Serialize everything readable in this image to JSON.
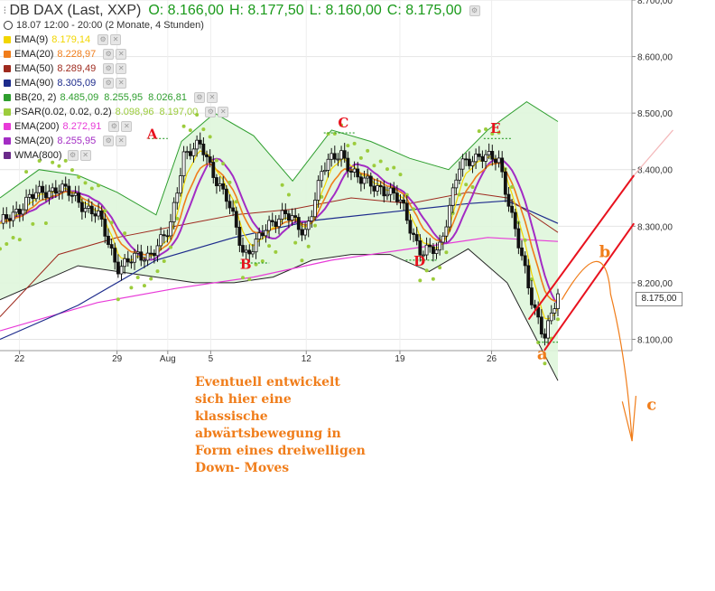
{
  "header": {
    "symbol": "DB DAX (Last, XXP)",
    "open": "O: 8.166,00",
    "high": "H: 8.177,50",
    "low": "L: 8.160,00",
    "close": "C: 8.175,00",
    "timeframe": "18.07 12:00 - 20:00 (2 Monate, 4 Stunden)"
  },
  "indicators": [
    {
      "name": "EMA(9)",
      "values": [
        "8.179,14"
      ],
      "color": "#f2d600"
    },
    {
      "name": "EMA(20)",
      "values": [
        "8.228,97"
      ],
      "color": "#f07d1a"
    },
    {
      "name": "EMA(50)",
      "values": [
        "8.289,49"
      ],
      "color": "#9e2a1e"
    },
    {
      "name": "EMA(90)",
      "values": [
        "8.305,09"
      ],
      "color": "#1d2b8c"
    },
    {
      "name": "BB(20, 2)",
      "values": [
        "8.485,09",
        "8.255,95",
        "8.026,81"
      ],
      "color": "#2e9e2e"
    },
    {
      "name": "PSAR(0.02, 0.02, 0.2)",
      "values": [
        "8.098,96",
        "8.197,00"
      ],
      "color": "#9ccc3c"
    },
    {
      "name": "EMA(200)",
      "values": [
        "8.272,91"
      ],
      "color": "#e83ad8"
    },
    {
      "name": "SMA(20)",
      "values": [
        "8.255,95"
      ],
      "color": "#a32cc4"
    },
    {
      "name": "WMA(800)",
      "values": [],
      "color": "#6a2a8a"
    }
  ],
  "annotation_note": [
    "Eventuell entwickelt",
    "sich hier eine",
    "klassische",
    "abwärtsbewegung in",
    "Form eines dreiwelligen",
    "Down- Moves"
  ],
  "chart_data": {
    "type": "candlestick",
    "title": "DB DAX (Last, XXP)",
    "x_ticks": [
      "22",
      "29",
      "Aug",
      "5",
      "12",
      "19",
      "26"
    ],
    "y_ticks": [
      "8.700,00",
      "8.600,00",
      "8.500,00",
      "8.400,00",
      "8.300,00",
      "8.200,00",
      "8.100,00"
    ],
    "ylim": [
      8080,
      8700
    ],
    "last_price": "8.175,00",
    "wave_labels": [
      {
        "label": "A",
        "price": 8455,
        "day": 7.8
      },
      {
        "label": "B",
        "price": 8225,
        "day": 12.6
      },
      {
        "label": "C",
        "price": 8475,
        "day": 17.6
      },
      {
        "label": "D",
        "price": 8230,
        "day": 21.5
      },
      {
        "label": "E",
        "price": 8465,
        "day": 25.4
      },
      {
        "label": "a",
        "price": 8065,
        "day": 27.8
      },
      {
        "label": "b",
        "price": 8245,
        "day": 31.0
      },
      {
        "label": "c",
        "price": 7975,
        "day": 33.4
      }
    ],
    "x_tick_days": [
      1,
      6,
      8.6,
      10.8,
      15.7,
      20.5,
      25.2
    ],
    "key_points": [
      {
        "day": 0,
        "price": 8300
      },
      {
        "day": 1.5,
        "price": 8350
      },
      {
        "day": 3,
        "price": 8370
      },
      {
        "day": 5,
        "price": 8320
      },
      {
        "day": 6,
        "price": 8230
      },
      {
        "day": 7.6,
        "price": 8250
      },
      {
        "day": 8.7,
        "price": 8290
      },
      {
        "day": 9.4,
        "price": 8430
      },
      {
        "day": 10.3,
        "price": 8440
      },
      {
        "day": 11.6,
        "price": 8350
      },
      {
        "day": 12.5,
        "price": 8250
      },
      {
        "day": 13.6,
        "price": 8290
      },
      {
        "day": 14.6,
        "price": 8330
      },
      {
        "day": 15.6,
        "price": 8280
      },
      {
        "day": 16.5,
        "price": 8400
      },
      {
        "day": 17.5,
        "price": 8430
      },
      {
        "day": 18.4,
        "price": 8380
      },
      {
        "day": 19.5,
        "price": 8370
      },
      {
        "day": 20.6,
        "price": 8340
      },
      {
        "day": 21.6,
        "price": 8250
      },
      {
        "day": 22.5,
        "price": 8260
      },
      {
        "day": 23.5,
        "price": 8400
      },
      {
        "day": 24.6,
        "price": 8430
      },
      {
        "day": 25.6,
        "price": 8410
      },
      {
        "day": 26.4,
        "price": 8300
      },
      {
        "day": 27.2,
        "price": 8170
      },
      {
        "day": 27.9,
        "price": 8110
      },
      {
        "day": 28.6,
        "price": 8175
      }
    ],
    "ema200_points": [
      {
        "day": 0,
        "price": 8115
      },
      {
        "day": 5,
        "price": 8165
      },
      {
        "day": 9,
        "price": 8190
      },
      {
        "day": 13,
        "price": 8210
      },
      {
        "day": 17,
        "price": 8240
      },
      {
        "day": 21,
        "price": 8260
      },
      {
        "day": 25,
        "price": 8280
      },
      {
        "day": 28.6,
        "price": 8273
      }
    ],
    "ema90_points": [
      {
        "day": 0,
        "price": 8100
      },
      {
        "day": 4,
        "price": 8160
      },
      {
        "day": 8,
        "price": 8240
      },
      {
        "day": 12,
        "price": 8280
      },
      {
        "day": 16,
        "price": 8310
      },
      {
        "day": 20,
        "price": 8325
      },
      {
        "day": 24,
        "price": 8340
      },
      {
        "day": 26,
        "price": 8345
      },
      {
        "day": 28.6,
        "price": 8305
      }
    ],
    "ema50_points": [
      {
        "day": 0,
        "price": 8140
      },
      {
        "day": 3,
        "price": 8250
      },
      {
        "day": 6,
        "price": 8280
      },
      {
        "day": 9,
        "price": 8300
      },
      {
        "day": 12,
        "price": 8320
      },
      {
        "day": 15,
        "price": 8330
      },
      {
        "day": 18,
        "price": 8350
      },
      {
        "day": 21,
        "price": 8340
      },
      {
        "day": 24,
        "price": 8360
      },
      {
        "day": 26,
        "price": 8350
      },
      {
        "day": 28.6,
        "price": 8289
      }
    ],
    "bb_upper_points": [
      {
        "day": 0,
        "price": 8350
      },
      {
        "day": 2,
        "price": 8400
      },
      {
        "day": 4,
        "price": 8390
      },
      {
        "day": 6,
        "price": 8360
      },
      {
        "day": 8,
        "price": 8320
      },
      {
        "day": 9.3,
        "price": 8450
      },
      {
        "day": 11,
        "price": 8500
      },
      {
        "day": 13,
        "price": 8460
      },
      {
        "day": 15,
        "price": 8380
      },
      {
        "day": 17,
        "price": 8470
      },
      {
        "day": 19,
        "price": 8450
      },
      {
        "day": 21,
        "price": 8420
      },
      {
        "day": 23,
        "price": 8400
      },
      {
        "day": 25,
        "price": 8470
      },
      {
        "day": 27,
        "price": 8520
      },
      {
        "day": 28.6,
        "price": 8485
      }
    ],
    "bb_lower_points": [
      {
        "day": 0,
        "price": 8170
      },
      {
        "day": 2,
        "price": 8200
      },
      {
        "day": 4,
        "price": 8230
      },
      {
        "day": 6,
        "price": 8220
      },
      {
        "day": 8,
        "price": 8210
      },
      {
        "day": 10,
        "price": 8200
      },
      {
        "day": 12,
        "price": 8200
      },
      {
        "day": 14,
        "price": 8210
      },
      {
        "day": 16,
        "price": 8240
      },
      {
        "day": 18,
        "price": 8250
      },
      {
        "day": 20,
        "price": 8250
      },
      {
        "day": 22,
        "price": 8220
      },
      {
        "day": 24,
        "price": 8260
      },
      {
        "day": 26,
        "price": 8200
      },
      {
        "day": 28.6,
        "price": 8027
      }
    ]
  }
}
